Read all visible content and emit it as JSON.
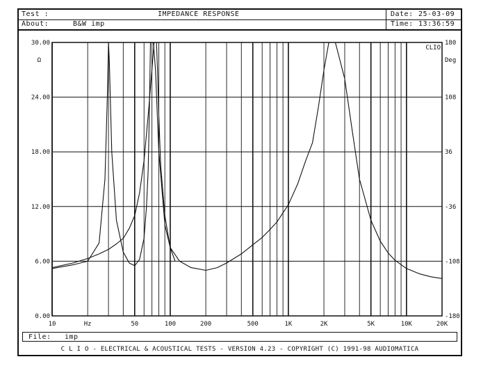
{
  "header": {
    "test_label": "Test :",
    "title": "IMPEDANCE RESPONSE",
    "date_label": "Date:",
    "date_value": "25-03-09",
    "about_label": "About:",
    "about_value": "B&W imp",
    "time_label": "Time:",
    "time_value": "13:36:59"
  },
  "file_bar": {
    "label": "File:",
    "value": "imp"
  },
  "footer": {
    "text": "C L I O  -  ELECTRICAL & ACOUSTICAL TESTS  -  VERSION 4.23  -  COPYRIGHT (C) 1991-98 AUDIOMATICA"
  },
  "chart_data": {
    "type": "line",
    "x_scale": "log",
    "xlim": [
      10,
      20000
    ],
    "ylim": [
      0,
      30
    ],
    "y_left_unit": "Ω",
    "y_left_ticks": [
      "30.00",
      "24.00",
      "18.00",
      "12.00",
      "6.00",
      "0.00"
    ],
    "y_right_unit": "Deg",
    "y_right_lim": [
      -180,
      180
    ],
    "y_right_ticks": [
      "180",
      "108",
      "36",
      "-36",
      "-108",
      "-180"
    ],
    "x_tick_labels": [
      {
        "x": 10,
        "label": "10"
      },
      {
        "x": 20,
        "label": "Hz"
      },
      {
        "x": 50,
        "label": "50"
      },
      {
        "x": 100,
        "label": "100"
      },
      {
        "x": 200,
        "label": "200"
      },
      {
        "x": 500,
        "label": "500"
      },
      {
        "x": 1000,
        "label": "1K"
      },
      {
        "x": 2000,
        "label": "2K"
      },
      {
        "x": 5000,
        "label": "5K"
      },
      {
        "x": 10000,
        "label": "10K"
      },
      {
        "x": 20000,
        "label": "20K"
      }
    ],
    "corner_label": "CLIO",
    "grid": true,
    "series": [
      {
        "role": "impedance-curve-1",
        "x": [
          10,
          15,
          20,
          25,
          28,
          29.5,
          30,
          30.5,
          32,
          35,
          40,
          45,
          50,
          55,
          60,
          63,
          65,
          66.5,
          68,
          70,
          72,
          75,
          80,
          90,
          100,
          120,
          150,
          200,
          250,
          300,
          400,
          500,
          600,
          700,
          800,
          1000,
          1200,
          1400,
          1600,
          1800,
          2000,
          2200,
          2500,
          3000,
          3500,
          4000,
          5000,
          6000,
          7000,
          8000,
          10000,
          13000,
          16000,
          20000
        ],
        "y": [
          5.2,
          5.6,
          6.0,
          8.0,
          15.0,
          25.0,
          30.0,
          28.0,
          18.0,
          10.5,
          7.0,
          5.8,
          5.5,
          6.2,
          8.5,
          12.0,
          16.0,
          22.0,
          30.0,
          30.0,
          30.0,
          27.0,
          18.0,
          10.0,
          7.5,
          6.0,
          5.3,
          5.0,
          5.3,
          5.8,
          6.8,
          7.8,
          8.6,
          9.5,
          10.3,
          12.2,
          14.5,
          17.0,
          19.0,
          23.0,
          27.0,
          30.0,
          30.0,
          26.0,
          20.0,
          15.0,
          10.5,
          8.2,
          6.9,
          6.1,
          5.2,
          4.6,
          4.3,
          4.1
        ]
      },
      {
        "role": "impedance-curve-2",
        "x": [
          10,
          15,
          20,
          25,
          30,
          35,
          40,
          45,
          50,
          55,
          60,
          65,
          70,
          73,
          75,
          76.5,
          78,
          80,
          83,
          90,
          100,
          110
        ],
        "y": [
          5.3,
          5.8,
          6.3,
          6.8,
          7.3,
          7.9,
          8.5,
          9.6,
          11.0,
          13.5,
          17.0,
          22.0,
          27.0,
          30.0,
          30.0,
          30.0,
          27.0,
          22.0,
          16.5,
          11.0,
          7.5,
          6.0
        ]
      }
    ]
  }
}
